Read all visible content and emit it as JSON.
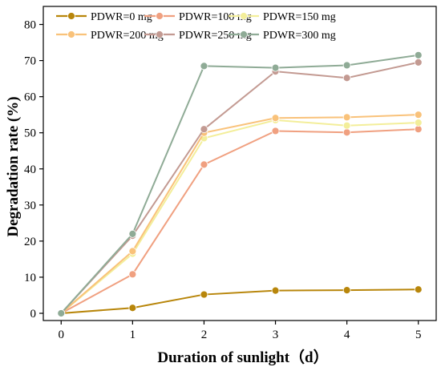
{
  "chart_data": {
    "type": "line",
    "xlabel": "Duration of sunlight（d）",
    "ylabel": "Degradation rate (%)",
    "x": [
      0,
      1,
      2,
      3,
      4,
      5
    ],
    "xlim": [
      -0.25,
      5.25
    ],
    "ylim": [
      -2,
      85
    ],
    "xticks": [
      0,
      1,
      2,
      3,
      4,
      5
    ],
    "yticks": [
      0,
      10,
      20,
      30,
      40,
      50,
      60,
      70,
      80
    ],
    "grid": false,
    "legend_position": "top",
    "series": [
      {
        "name": "PDWR=0 mg",
        "color": "#b8860b",
        "values": [
          0,
          1.5,
          5.2,
          6.3,
          6.4,
          6.6
        ]
      },
      {
        "name": "PDWR=100 mg",
        "color": "#f0a080",
        "values": [
          0,
          10.8,
          41.2,
          50.5,
          50.1,
          51.0
        ]
      },
      {
        "name": "PDWR=150 mg",
        "color": "#f3ee9a",
        "values": [
          0,
          16.5,
          48.5,
          53.5,
          52.0,
          52.8
        ]
      },
      {
        "name": "PDWR=200 mg",
        "color": "#f9c27a",
        "values": [
          0,
          17.2,
          50.0,
          54.1,
          54.3,
          55.0
        ]
      },
      {
        "name": "PDWR=250 mg",
        "color": "#c39a92",
        "values": [
          0,
          21.5,
          51.0,
          67.0,
          65.2,
          69.5
        ]
      },
      {
        "name": "PDWR=300 mg",
        "color": "#8fab96",
        "values": [
          0,
          22.0,
          68.5,
          68.0,
          68.7,
          71.5
        ]
      }
    ]
  }
}
